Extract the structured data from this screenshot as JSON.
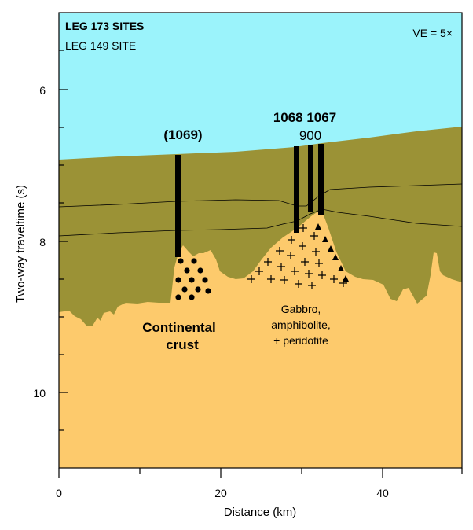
{
  "legend": {
    "leg173": "LEG 173 SITES",
    "leg149": "LEG 149 SITE",
    "ve": "VE = 5×"
  },
  "sites": {
    "s1069": "(1069)",
    "s1068_1067": "1068 1067",
    "s900": "900"
  },
  "labels": {
    "continental_line1": "Continental",
    "continental_line2": "crust",
    "gabbro_line1": "Gabbro,",
    "gabbro_line2": "amphibolite,",
    "gabbro_line3": "+ peridotite"
  },
  "axes": {
    "x_label": "Distance (km)",
    "y_label": "Two-way traveltime (s)",
    "x_ticks": [
      "0",
      "20",
      "40"
    ],
    "y_ticks": [
      "6",
      "8",
      "10"
    ]
  },
  "colors": {
    "water": "#9bf3fb",
    "sediment": "#9b9236",
    "basement": "#fdca6c",
    "frame": "#000000"
  }
}
